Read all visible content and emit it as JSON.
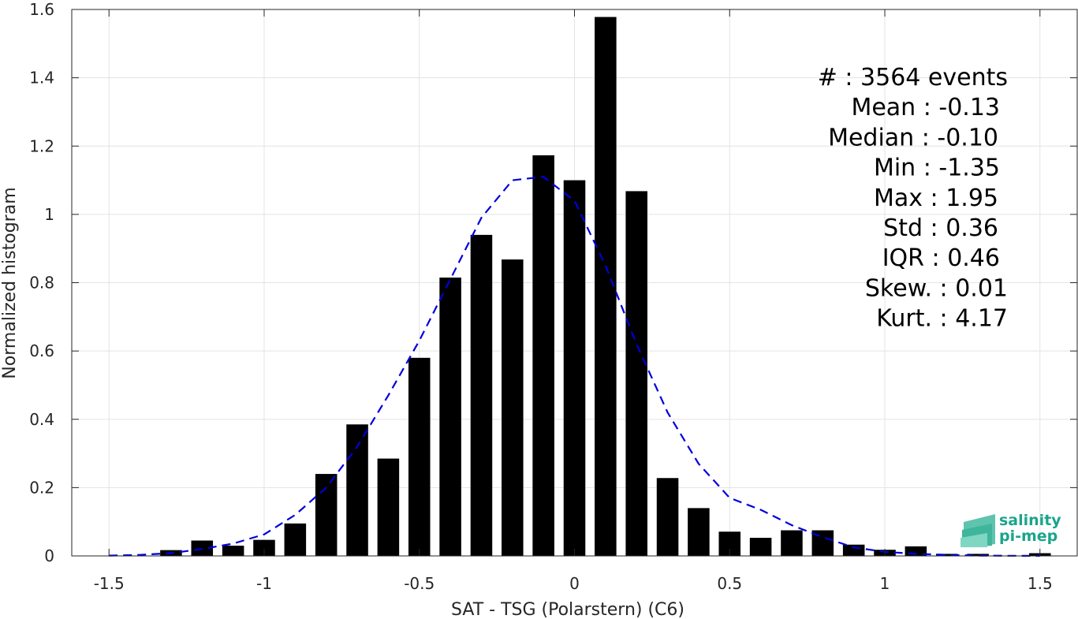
{
  "chart_data": {
    "type": "bar",
    "xlabel": "SAT - TSG (Polarstern) (C6)",
    "ylabel": "Normalized histogram",
    "xlim": [
      -1.62,
      1.62
    ],
    "ylim": [
      0,
      1.6
    ],
    "xticks": [
      -1.5,
      -1,
      -0.5,
      0,
      0.5,
      1,
      1.5
    ],
    "xtick_labels": [
      "-1.5",
      "-1",
      "-0.5",
      "0",
      "0.5",
      "1",
      "1.5"
    ],
    "yticks": [
      0,
      0.2,
      0.4,
      0.6,
      0.8,
      1.0,
      1.2,
      1.4,
      1.6
    ],
    "ytick_labels": [
      "0",
      "0.2",
      "0.4",
      "0.6",
      "0.8",
      "1",
      "1.2",
      "1.4",
      "1.6"
    ],
    "grid": true,
    "bar_width": 0.07,
    "bar_color": "#000000",
    "bins": [
      -1.3,
      -1.2,
      -1.1,
      -1.0,
      -0.9,
      -0.8,
      -0.7,
      -0.6,
      -0.5,
      -0.4,
      -0.3,
      -0.2,
      -0.1,
      0.0,
      0.1,
      0.2,
      0.3,
      0.4,
      0.5,
      0.6,
      0.7,
      0.8,
      0.9,
      1.0,
      1.1,
      1.2,
      1.3,
      1.5
    ],
    "values": [
      0.017,
      0.045,
      0.03,
      0.047,
      0.095,
      0.24,
      0.385,
      0.285,
      0.58,
      0.815,
      0.94,
      0.868,
      1.173,
      1.1,
      1.578,
      1.068,
      0.228,
      0.14,
      0.071,
      0.053,
      0.075,
      0.075,
      0.033,
      0.018,
      0.028,
      0.006,
      0.006,
      0.008
    ],
    "fit_curve": {
      "style": "dashed",
      "color": "#0000dd",
      "x": [
        -1.5,
        -1.4,
        -1.3,
        -1.2,
        -1.1,
        -1.0,
        -0.9,
        -0.8,
        -0.7,
        -0.6,
        -0.5,
        -0.4,
        -0.3,
        -0.2,
        -0.1,
        0.0,
        0.1,
        0.2,
        0.3,
        0.4,
        0.5,
        0.6,
        0.7,
        0.8,
        0.9,
        1.0,
        1.1,
        1.2,
        1.3,
        1.4,
        1.5
      ],
      "y": [
        0.001,
        0.003,
        0.008,
        0.02,
        0.036,
        0.063,
        0.12,
        0.2,
        0.32,
        0.47,
        0.63,
        0.81,
        0.99,
        1.1,
        1.11,
        1.04,
        0.85,
        0.62,
        0.42,
        0.27,
        0.17,
        0.135,
        0.09,
        0.055,
        0.025,
        0.012,
        0.006,
        0.003,
        0.001,
        0.0005,
        0.0002
      ]
    },
    "stats": [
      "#  : 3564 events",
      "Mean : -0.13",
      "Median : -0.10",
      "Min : -1.35",
      "Max : 1.95",
      "Std : 0.36",
      "IQR : 0.46",
      "Skew. : 0.01",
      "Kurt. : 4.17"
    ]
  },
  "logo": {
    "line1": "salinity",
    "line2": "pi-mep",
    "color": "#1aa58a"
  }
}
